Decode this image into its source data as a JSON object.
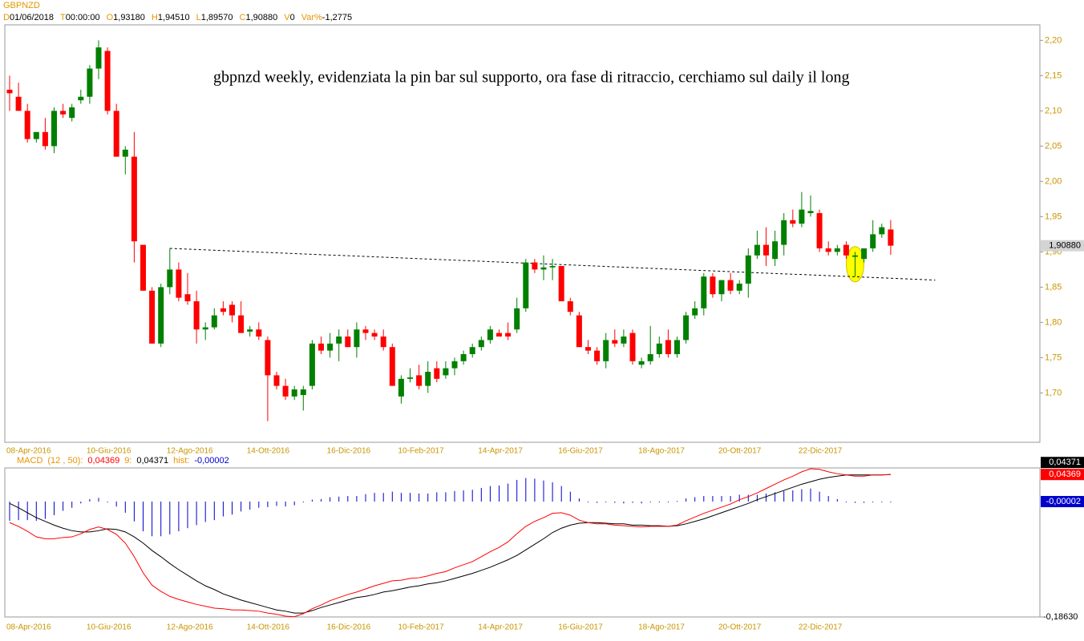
{
  "chart_data": [
    {
      "type": "candlestick",
      "title": "GBPNZD",
      "header": [
        {
          "key": "D",
          "value": "01/06/2018"
        },
        {
          "key": "T",
          "value": "00:00:00"
        },
        {
          "key": "O",
          "value": "1,93180"
        },
        {
          "key": "H",
          "value": "1,94510"
        },
        {
          "key": "L",
          "value": "1,89570"
        },
        {
          "key": "C",
          "value": "1,90880"
        },
        {
          "key": "V",
          "value": "0"
        },
        {
          "key": "Var%",
          "value": "-1,2775"
        }
      ],
      "annotation": "gbpnzd weekly, evidenziata la pin bar sul supporto, ora fase di ritraccio, cerchiamo sul daily il long",
      "categories": [
        "08-Apr-2016",
        null,
        null,
        null,
        null,
        null,
        null,
        null,
        null,
        "10-Giu-2016",
        null,
        null,
        null,
        null,
        null,
        null,
        null,
        null,
        "12-Ago-2016",
        null,
        null,
        null,
        null,
        null,
        null,
        null,
        null,
        "14-Ott-2016",
        null,
        null,
        null,
        null,
        null,
        null,
        null,
        null,
        "16-Dic-2016",
        null,
        null,
        null,
        null,
        null,
        null,
        null,
        "10-Feb-2017",
        null,
        null,
        null,
        null,
        null,
        null,
        null,
        null,
        "14-Apr-2017",
        null,
        null,
        null,
        null,
        null,
        null,
        null,
        null,
        "16-Giu-2017",
        null,
        null,
        null,
        null,
        null,
        null,
        null,
        null,
        "18-Ago-2017",
        null,
        null,
        null,
        null,
        null,
        null,
        null,
        null,
        "20-Ott-2017",
        null,
        null,
        null,
        null,
        null,
        null,
        null,
        null,
        "22-Dic-2017",
        null,
        null,
        null,
        null,
        null,
        null,
        null,
        null,
        null,
        null
      ],
      "open": [
        2.13,
        2.12,
        2.1,
        2.06,
        2.07,
        2.05,
        2.1,
        2.09,
        2.115,
        2.12,
        2.16,
        2.185,
        2.1,
        2.035,
        2.035,
        1.91,
        1.845,
        1.77,
        1.85,
        1.875,
        1.84,
        1.83,
        1.79,
        1.793,
        1.82,
        1.825,
        1.81,
        1.787,
        1.79,
        1.775,
        1.725,
        1.71,
        1.695,
        1.697,
        1.71,
        1.77,
        1.76,
        1.77,
        1.78,
        1.765,
        1.79,
        1.785,
        1.78,
        1.765,
        1.695,
        1.72,
        1.725,
        1.71,
        1.735,
        1.725,
        1.735,
        1.745,
        1.755,
        1.765,
        1.775,
        1.785,
        1.785,
        1.79,
        1.82,
        1.885,
        1.875,
        1.878,
        1.88,
        1.83,
        1.81,
        1.765,
        1.76,
        1.745,
        1.775,
        1.77,
        1.785,
        1.74,
        1.745,
        1.755,
        1.775,
        1.755,
        1.775,
        1.81,
        1.82,
        1.865,
        1.84,
        1.86,
        1.845,
        1.855,
        1.895,
        1.91,
        1.89,
        1.91,
        1.945,
        1.94,
        1.955,
        1.955,
        1.905,
        1.9,
        1.91,
        1.893,
        1.89,
        1.905,
        1.925,
        1.9318
      ],
      "high": [
        2.15,
        2.14,
        2.11,
        2.07,
        2.09,
        2.105,
        2.11,
        2.11,
        2.13,
        2.165,
        2.2,
        2.19,
        2.11,
        2.05,
        2.07,
        1.91,
        1.85,
        1.855,
        1.905,
        1.885,
        1.87,
        1.845,
        1.8,
        1.82,
        1.83,
        1.83,
        1.83,
        1.795,
        1.8,
        1.78,
        1.73,
        1.72,
        1.71,
        1.71,
        1.775,
        1.78,
        1.785,
        1.79,
        1.79,
        1.8,
        1.795,
        1.79,
        1.79,
        1.77,
        1.725,
        1.735,
        1.74,
        1.745,
        1.745,
        1.745,
        1.75,
        1.76,
        1.77,
        1.78,
        1.795,
        1.79,
        1.8,
        1.835,
        1.89,
        1.89,
        1.895,
        1.89,
        1.88,
        1.835,
        1.815,
        1.775,
        1.765,
        1.785,
        1.79,
        1.79,
        1.79,
        1.75,
        1.795,
        1.78,
        1.79,
        1.78,
        1.815,
        1.83,
        1.87,
        1.87,
        1.86,
        1.87,
        1.86,
        1.905,
        1.93,
        1.935,
        1.93,
        1.955,
        1.96,
        1.985,
        1.98,
        1.96,
        1.915,
        1.91,
        1.915,
        1.9,
        1.905,
        1.945,
        1.94,
        1.9451
      ],
      "low": [
        2.1,
        2.1,
        2.055,
        2.055,
        2.045,
        2.04,
        2.09,
        2.085,
        2.11,
        2.11,
        2.145,
        2.095,
        2.035,
        2.01,
        1.885,
        1.845,
        1.77,
        1.765,
        1.84,
        1.83,
        1.825,
        1.77,
        1.775,
        1.79,
        1.81,
        1.8,
        1.785,
        1.78,
        1.775,
        1.66,
        1.705,
        1.69,
        1.69,
        1.675,
        1.705,
        1.755,
        1.75,
        1.745,
        1.765,
        1.75,
        1.775,
        1.775,
        1.76,
        1.71,
        1.685,
        1.715,
        1.705,
        1.7,
        1.715,
        1.72,
        1.725,
        1.74,
        1.75,
        1.76,
        1.77,
        1.78,
        1.775,
        1.785,
        1.815,
        1.87,
        1.86,
        1.86,
        1.83,
        1.81,
        1.765,
        1.755,
        1.74,
        1.735,
        1.765,
        1.765,
        1.74,
        1.735,
        1.74,
        1.75,
        1.75,
        1.75,
        1.77,
        1.805,
        1.81,
        1.835,
        1.83,
        1.84,
        1.84,
        1.835,
        1.89,
        1.88,
        1.88,
        1.895,
        1.935,
        1.935,
        1.95,
        1.9,
        1.895,
        1.895,
        1.89,
        1.865,
        1.885,
        1.9,
        1.92,
        1.8957
      ],
      "close": [
        2.125,
        2.1,
        2.06,
        2.07,
        2.05,
        2.1,
        2.095,
        2.105,
        2.12,
        2.16,
        2.19,
        2.1,
        2.035,
        2.045,
        1.915,
        1.845,
        1.77,
        1.85,
        1.875,
        1.835,
        1.83,
        1.79,
        1.793,
        1.81,
        1.815,
        1.81,
        1.785,
        1.79,
        1.78,
        1.725,
        1.71,
        1.695,
        1.705,
        1.705,
        1.77,
        1.76,
        1.77,
        1.78,
        1.765,
        1.79,
        1.785,
        1.78,
        1.765,
        1.71,
        1.72,
        1.722,
        1.71,
        1.73,
        1.72,
        1.735,
        1.745,
        1.755,
        1.765,
        1.775,
        1.79,
        1.78,
        1.78,
        1.82,
        1.885,
        1.875,
        1.878,
        1.88,
        1.83,
        1.815,
        1.765,
        1.76,
        1.745,
        1.775,
        1.77,
        1.78,
        1.745,
        1.745,
        1.755,
        1.77,
        1.755,
        1.775,
        1.81,
        1.82,
        1.865,
        1.84,
        1.86,
        1.845,
        1.855,
        1.895,
        1.91,
        1.895,
        1.915,
        1.945,
        1.94,
        1.96,
        1.958,
        1.905,
        1.9,
        1.905,
        1.895,
        1.895,
        1.905,
        1.925,
        1.935,
        1.9088
      ],
      "up_color": "#008000",
      "down_color": "#ff0000",
      "ylim": [
        1.63,
        2.222
      ],
      "yticks": [
        {
          "value": 1.7,
          "label": "1,70"
        },
        {
          "value": 1.75,
          "label": "1,75"
        },
        {
          "value": 1.8,
          "label": "1,80"
        },
        {
          "value": 1.85,
          "label": "1,85"
        },
        {
          "value": 1.9,
          "label": "1,90"
        },
        {
          "value": 1.95,
          "label": "1,95"
        },
        {
          "value": 2,
          "label": "2,00"
        },
        {
          "value": 2.05,
          "label": "2,05"
        },
        {
          "value": 2.1,
          "label": "2,10"
        },
        {
          "value": 2.15,
          "label": "2,15"
        },
        {
          "value": 2.2,
          "label": "2,20"
        }
      ],
      "last_price": {
        "value": 1.9088,
        "label": "1,90880"
      },
      "trendline": {
        "x": [
          18,
          104
        ],
        "y": [
          1.905,
          1.86
        ]
      },
      "highlight_index": 95
    },
    {
      "type": "macd",
      "title": "MACD",
      "series": [
        {
          "name": "(12 , 50):",
          "color": "#ff0000",
          "last_label": "0,04369",
          "values": [
            -0.034,
            -0.04,
            -0.048,
            -0.057,
            -0.06,
            -0.06,
            -0.058,
            -0.057,
            -0.052,
            -0.045,
            -0.041,
            -0.045,
            -0.053,
            -0.067,
            -0.089,
            -0.115,
            -0.135,
            -0.145,
            -0.153,
            -0.158,
            -0.162,
            -0.166,
            -0.169,
            -0.172,
            -0.173,
            -0.175,
            -0.175,
            -0.176,
            -0.177,
            -0.18,
            -0.182,
            -0.185,
            -0.186,
            -0.181,
            -0.173,
            -0.167,
            -0.16,
            -0.155,
            -0.15,
            -0.146,
            -0.141,
            -0.136,
            -0.132,
            -0.128,
            -0.127,
            -0.124,
            -0.123,
            -0.12,
            -0.116,
            -0.113,
            -0.107,
            -0.102,
            -0.097,
            -0.089,
            -0.081,
            -0.074,
            -0.065,
            -0.052,
            -0.04,
            -0.032,
            -0.026,
            -0.019,
            -0.018,
            -0.022,
            -0.03,
            -0.034,
            -0.036,
            -0.036,
            -0.038,
            -0.039,
            -0.04,
            -0.041,
            -0.04,
            -0.04,
            -0.04,
            -0.038,
            -0.031,
            -0.025,
            -0.019,
            -0.014,
            -0.009,
            -0.004,
            0.003,
            0.008,
            0.014,
            0.021,
            0.028,
            0.035,
            0.041,
            0.048,
            0.053,
            0.052,
            0.048,
            0.045,
            0.043,
            0.041,
            0.041,
            0.043,
            0.043,
            0.04369
          ]
        },
        {
          "name": "9:",
          "color": "#000000",
          "last_label": "0,04371",
          "values": [
            -0.003,
            -0.01,
            -0.018,
            -0.026,
            -0.032,
            -0.038,
            -0.043,
            -0.047,
            -0.049,
            -0.049,
            -0.047,
            -0.044,
            -0.045,
            -0.049,
            -0.057,
            -0.067,
            -0.079,
            -0.089,
            -0.1,
            -0.11,
            -0.119,
            -0.128,
            -0.136,
            -0.142,
            -0.149,
            -0.154,
            -0.159,
            -0.163,
            -0.167,
            -0.171,
            -0.175,
            -0.177,
            -0.18,
            -0.18,
            -0.176,
            -0.171,
            -0.167,
            -0.163,
            -0.159,
            -0.155,
            -0.153,
            -0.15,
            -0.146,
            -0.144,
            -0.141,
            -0.138,
            -0.136,
            -0.133,
            -0.131,
            -0.128,
            -0.124,
            -0.12,
            -0.116,
            -0.111,
            -0.106,
            -0.1,
            -0.094,
            -0.087,
            -0.078,
            -0.069,
            -0.06,
            -0.05,
            -0.043,
            -0.038,
            -0.035,
            -0.034,
            -0.034,
            -0.035,
            -0.036,
            -0.036,
            -0.038,
            -0.038,
            -0.039,
            -0.039,
            -0.04,
            -0.039,
            -0.036,
            -0.032,
            -0.028,
            -0.023,
            -0.018,
            -0.013,
            -0.008,
            -0.003,
            0.003,
            0.008,
            0.013,
            0.018,
            0.023,
            0.028,
            0.032,
            0.036,
            0.039,
            0.041,
            0.043,
            0.043,
            0.043,
            0.043,
            0.043,
            0.04371
          ]
        },
        {
          "name": "hist:",
          "color": "#0000cc",
          "last_label": "-0,00002",
          "values": [
            -0.031,
            -0.03,
            -0.03,
            -0.031,
            -0.028,
            -0.022,
            -0.015,
            -0.01,
            -0.003,
            0.004,
            0.006,
            -0.001,
            -0.008,
            -0.018,
            -0.032,
            -0.048,
            -0.056,
            -0.056,
            -0.053,
            -0.048,
            -0.043,
            -0.038,
            -0.033,
            -0.03,
            -0.024,
            -0.021,
            -0.016,
            -0.013,
            -0.01,
            -0.009,
            -0.007,
            -0.008,
            -0.006,
            -0.001,
            0.003,
            0.004,
            0.007,
            0.008,
            0.009,
            0.009,
            0.012,
            0.014,
            0.014,
            0.016,
            0.014,
            0.014,
            0.013,
            0.013,
            0.015,
            0.015,
            0.017,
            0.018,
            0.019,
            0.022,
            0.025,
            0.026,
            0.029,
            0.035,
            0.038,
            0.037,
            0.034,
            0.031,
            0.025,
            0.016,
            0.005,
            0,
            -0.002,
            -0.001,
            -0.002,
            -0.003,
            -0.002,
            -0.003,
            -0.001,
            -0.001,
            0,
            0.001,
            0.005,
            0.007,
            0.009,
            0.009,
            0.009,
            0.009,
            0.011,
            0.011,
            0.011,
            0.013,
            0.015,
            0.017,
            0.018,
            0.02,
            0.021,
            0.016,
            0.009,
            0.004,
            0,
            -0.002,
            -0.002,
            0,
            0,
            -2e-05
          ]
        }
      ],
      "ylim": [
        -0.1863,
        0.0543
      ],
      "yticks": [
        {
          "value": -0.1863,
          "label": "-0,18630"
        }
      ]
    }
  ]
}
